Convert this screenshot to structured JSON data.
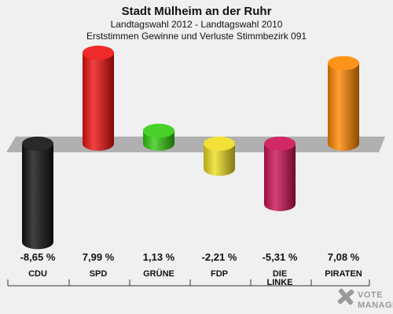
{
  "header": {
    "title": "Stadt Mülheim an der Ruhr",
    "subtitle1": "Landtagswahl 2012 - Landtagswahl 2010",
    "subtitle2": "Erststimmen Gewinne und Verluste Stimmbezirk 091"
  },
  "chart_data": {
    "type": "bar",
    "title": "Stadt Mülheim an der Ruhr",
    "categories": [
      "CDU",
      "SPD",
      "GRÜNE",
      "FDP",
      "DIE LINKE",
      "PIRATEN"
    ],
    "category_lines": [
      [
        "CDU"
      ],
      [
        "SPD"
      ],
      [
        "GRÜNE"
      ],
      [
        "FDP"
      ],
      [
        "DIE",
        "LINKE"
      ],
      [
        "PIRATEN"
      ]
    ],
    "values": [
      -8.65,
      7.99,
      1.13,
      -2.21,
      -5.31,
      7.08
    ],
    "value_labels": [
      "-8,65 %",
      "7,99 %",
      "1,13 %",
      "-2,21 %",
      "-5,31 %",
      "7,08 %"
    ],
    "colors": [
      "#111111",
      "#ee1111",
      "#33cc11",
      "#eedd22",
      "#cc1155",
      "#ff8800"
    ],
    "ylim": [
      -10,
      10
    ],
    "grid": false
  },
  "watermark": {
    "line1": "VOTE",
    "line2": "MANAGER"
  }
}
